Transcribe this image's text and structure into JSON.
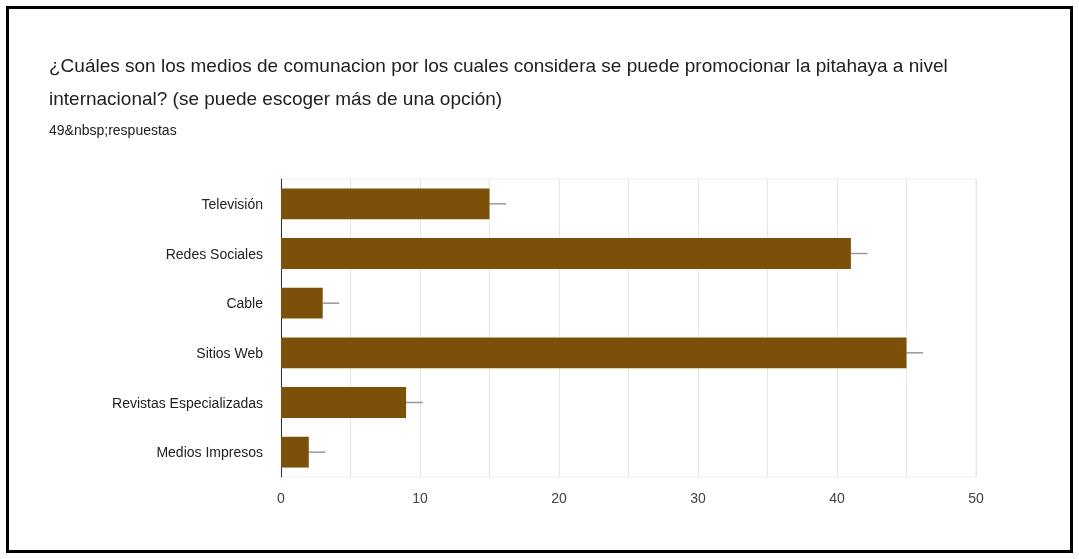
{
  "chart_data": {
    "type": "bar",
    "orientation": "horizontal",
    "title": "¿Cuáles son los medios de comunacion por los cuales considera se puede promocionar la pitahaya a nivel internacional? (se puede escoger más de una opción)",
    "subtitle": "49&nbsp;respuestas",
    "categories": [
      "Televisión",
      "Redes Sociales",
      "Cable",
      "Sitios Web",
      "Revistas Especializadas",
      "Medios Impresos"
    ],
    "values": [
      15,
      41,
      3,
      45,
      9,
      2
    ],
    "errors": [
      [
        15,
        16.2
      ],
      [
        41,
        42.2
      ],
      [
        3,
        4.2
      ],
      [
        45,
        46.2
      ],
      [
        9,
        10.2
      ],
      [
        2,
        3.2
      ]
    ],
    "color": "#7b5109",
    "xlim": [
      0,
      50
    ],
    "xticks": [
      0,
      {
        "value": 5,
        "label": null
      },
      10,
      {
        "value": 15,
        "label": null
      },
      20,
      {
        "value": 25,
        "label": null
      },
      30,
      {
        "value": 35,
        "label": null
      },
      40,
      {
        "value": 45,
        "label": null
      },
      50
    ],
    "grid": "x"
  }
}
